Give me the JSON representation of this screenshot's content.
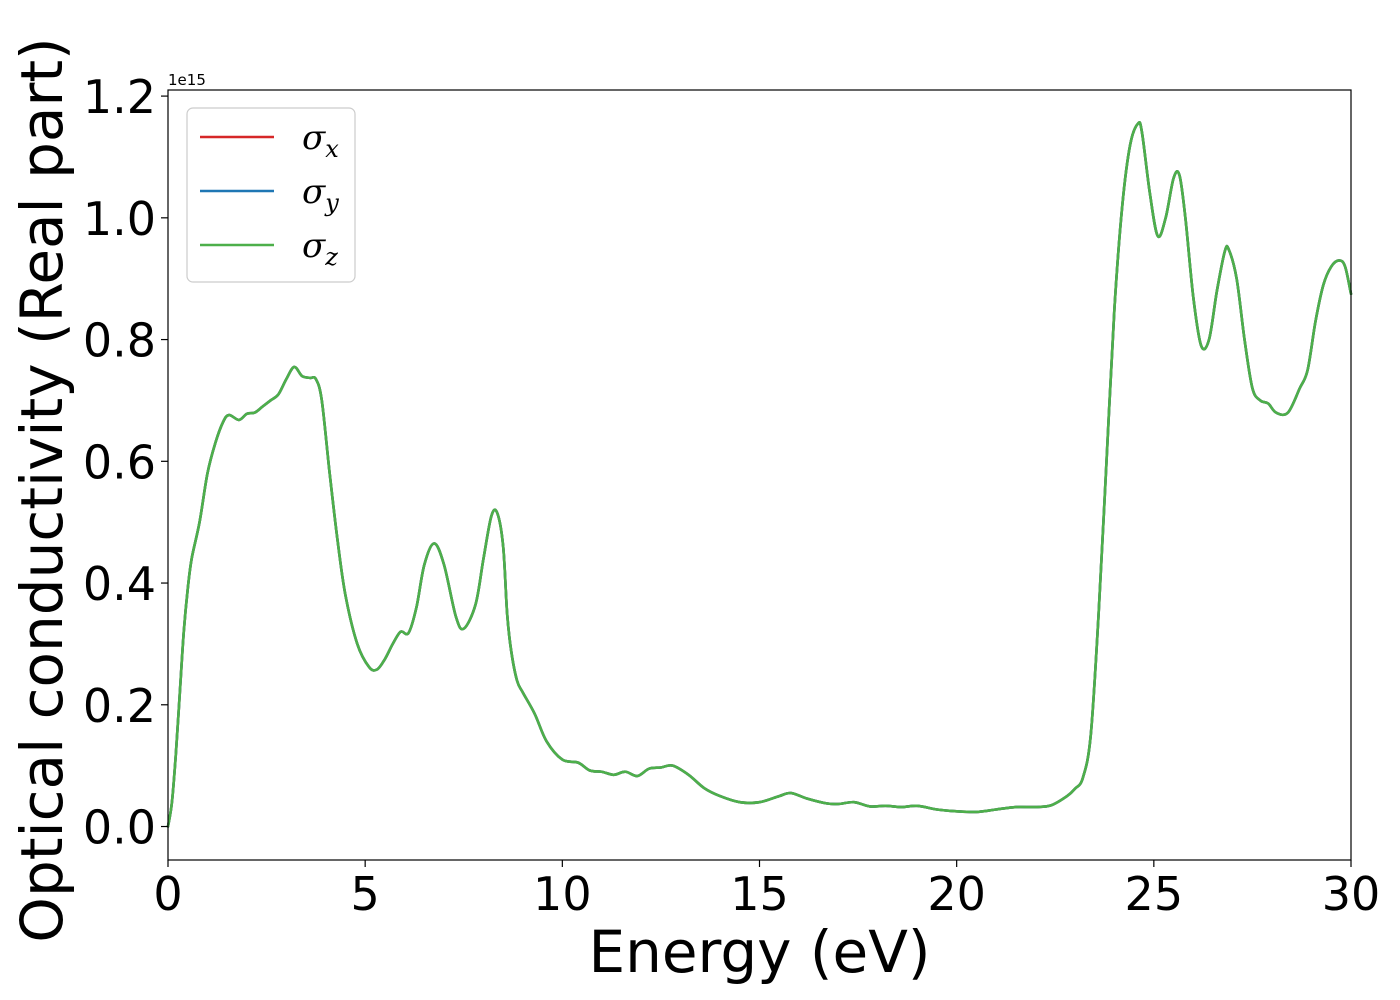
{
  "chart_data": {
    "type": "line",
    "title": "",
    "xlabel": "Energy (eV)",
    "ylabel": "Optical conductivity (Real part)",
    "y_offset_label": "1e15",
    "xlim": [
      0,
      30
    ],
    "ylim": [
      -0.055,
      1.21
    ],
    "xticks": [
      0,
      5,
      10,
      15,
      20,
      25,
      30
    ],
    "xtick_labels": [
      "0",
      "5",
      "10",
      "15",
      "20",
      "25",
      "30"
    ],
    "yticks": [
      0.0,
      0.2,
      0.4,
      0.6,
      0.8,
      1.0,
      1.2
    ],
    "ytick_labels": [
      "0.0",
      "0.2",
      "0.4",
      "0.6",
      "0.8",
      "1.0",
      "1.2"
    ],
    "grid": false,
    "legend_position": "upper-left",
    "series": [
      {
        "name": "σx",
        "symbol": "σ",
        "subscript": "x",
        "color": "#d62728"
      },
      {
        "name": "σy",
        "symbol": "σ",
        "subscript": "y",
        "color": "#1f77b4"
      },
      {
        "name": "σz",
        "symbol": "σ",
        "subscript": "z",
        "color": "#4daf4a"
      }
    ],
    "x": [
      0,
      0.1,
      0.2,
      0.3,
      0.4,
      0.5,
      0.6,
      0.8,
      1.0,
      1.2,
      1.4,
      1.55,
      1.8,
      2.0,
      2.2,
      2.4,
      2.6,
      2.8,
      3.0,
      3.2,
      3.4,
      3.6,
      3.75,
      3.9,
      4.1,
      4.3,
      4.5,
      4.8,
      5.1,
      5.3,
      5.5,
      5.7,
      5.9,
      6.1,
      6.3,
      6.5,
      6.75,
      7.0,
      7.3,
      7.5,
      7.8,
      8.0,
      8.2,
      8.35,
      8.5,
      8.6,
      8.7,
      8.85,
      9.0,
      9.3,
      9.6,
      10.0,
      10.4,
      10.7,
      11.0,
      11.3,
      11.6,
      11.9,
      12.2,
      12.5,
      12.8,
      13.2,
      13.6,
      14.0,
      14.5,
      15.0,
      15.5,
      15.8,
      16.2,
      16.7,
      17.0,
      17.4,
      17.8,
      18.2,
      18.6,
      19.0,
      19.5,
      20.0,
      20.5,
      21.0,
      21.5,
      22.0,
      22.4,
      22.8,
      23.0,
      23.2,
      23.4,
      23.6,
      23.8,
      24.0,
      24.2,
      24.4,
      24.6,
      24.7,
      24.9,
      25.1,
      25.3,
      25.5,
      25.65,
      25.8,
      26.0,
      26.2,
      26.4,
      26.6,
      26.8,
      26.9,
      27.1,
      27.3,
      27.5,
      27.7,
      27.9,
      28.1,
      28.4,
      28.7,
      28.9,
      29.1,
      29.3,
      29.5,
      29.7,
      29.85,
      30.0
    ],
    "y": [
      0.0,
      0.04,
      0.12,
      0.22,
      0.32,
      0.39,
      0.44,
      0.5,
      0.58,
      0.63,
      0.665,
      0.676,
      0.668,
      0.678,
      0.68,
      0.69,
      0.7,
      0.71,
      0.735,
      0.755,
      0.74,
      0.737,
      0.735,
      0.7,
      0.58,
      0.47,
      0.38,
      0.3,
      0.262,
      0.258,
      0.275,
      0.3,
      0.32,
      0.318,
      0.36,
      0.43,
      0.465,
      0.43,
      0.345,
      0.325,
      0.365,
      0.44,
      0.51,
      0.515,
      0.46,
      0.35,
      0.29,
      0.24,
      0.22,
      0.185,
      0.14,
      0.11,
      0.105,
      0.092,
      0.09,
      0.085,
      0.09,
      0.083,
      0.095,
      0.097,
      0.1,
      0.085,
      0.063,
      0.05,
      0.04,
      0.04,
      0.05,
      0.055,
      0.046,
      0.038,
      0.037,
      0.04,
      0.033,
      0.034,
      0.032,
      0.034,
      0.028,
      0.025,
      0.024,
      0.028,
      0.032,
      0.032,
      0.035,
      0.05,
      0.062,
      0.08,
      0.15,
      0.35,
      0.6,
      0.85,
      1.02,
      1.12,
      1.155,
      1.14,
      1.04,
      0.97,
      1.0,
      1.065,
      1.07,
      1.0,
      0.87,
      0.79,
      0.8,
      0.88,
      0.945,
      0.948,
      0.9,
      0.8,
      0.72,
      0.7,
      0.695,
      0.68,
      0.68,
      0.72,
      0.75,
      0.83,
      0.89,
      0.92,
      0.93,
      0.92,
      0.875
    ]
  }
}
